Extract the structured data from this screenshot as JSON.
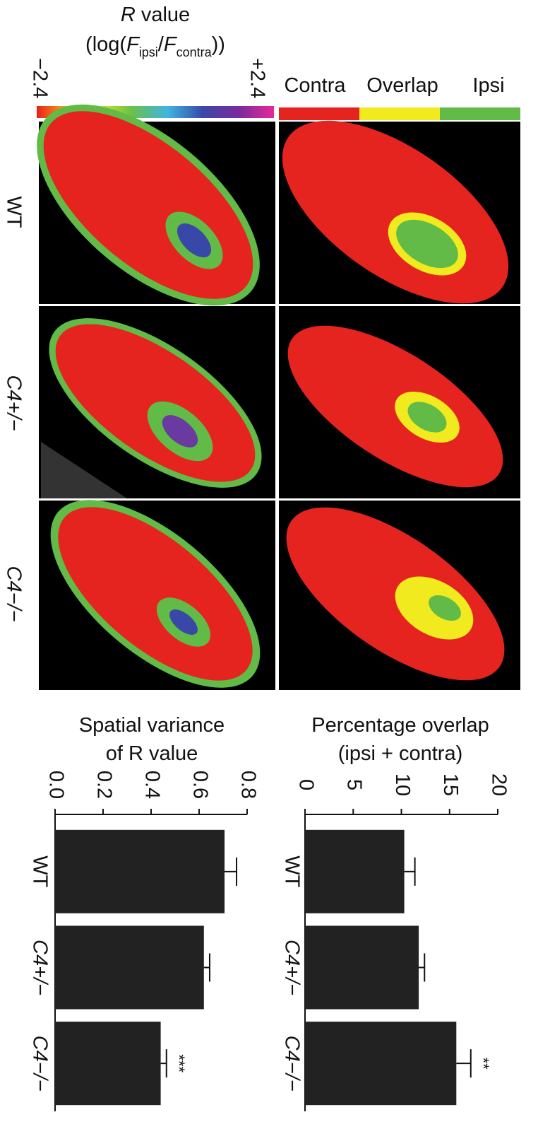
{
  "colorbar": {
    "title": [
      "R",
      " value"
    ],
    "label": [
      "(log(",
      "F",
      "ipsi",
      "/",
      "F",
      "contra",
      "))"
    ],
    "min_label": "−2.4",
    "max_label": "+2.4"
  },
  "legend": [
    "Contra",
    "Overlap",
    "Ipsi"
  ],
  "row_labels": [
    "WT",
    "C4+/−",
    "C4−/−"
  ],
  "chart_data": [
    {
      "type": "bar",
      "title": [
        "Percentage overlap",
        "(ipsi + contra)"
      ],
      "categories": [
        "WT",
        "C4+/−",
        "C4−/−"
      ],
      "values": [
        10.3,
        11.8,
        15.7
      ],
      "errors": [
        1.1,
        0.6,
        1.5
      ],
      "annotations": [
        null,
        null,
        "**"
      ],
      "xlim": [
        0,
        20
      ],
      "xticks": [
        0,
        5,
        10,
        15,
        20
      ],
      "color": "#222222"
    },
    {
      "type": "bar",
      "title": [
        "Spatial variance",
        "of R value"
      ],
      "categories": [
        "WT",
        "C4+/−",
        "C4−/−"
      ],
      "values": [
        0.706,
        0.62,
        0.44
      ],
      "errors": [
        0.05,
        0.024,
        0.024
      ],
      "annotations": [
        null,
        null,
        "***"
      ],
      "xlim": [
        0,
        0.8
      ],
      "xticks": [
        {
          "value": 0,
          "label": "0.0"
        },
        0.2,
        0.4,
        0.6,
        0.8
      ],
      "color": "#222222"
    }
  ]
}
